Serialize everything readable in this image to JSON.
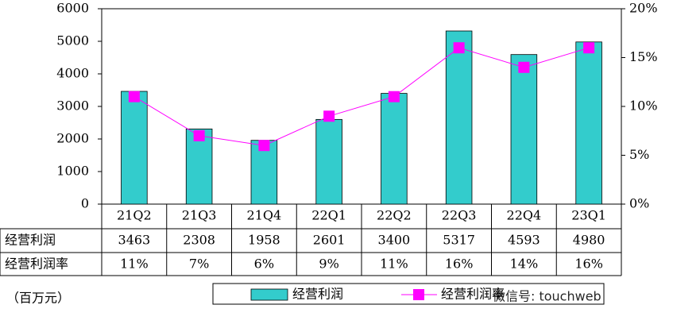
{
  "chart_data": {
    "type": "bar-line",
    "categories": [
      "21Q2",
      "21Q3",
      "21Q4",
      "22Q1",
      "22Q2",
      "22Q3",
      "22Q4",
      "23Q1"
    ],
    "series": [
      {
        "name": "经营利润",
        "type": "bar",
        "color": "#33cccc",
        "values": [
          3463,
          2308,
          1958,
          2601,
          3400,
          5317,
          4593,
          4980
        ]
      },
      {
        "name": "经营利润率",
        "type": "line",
        "axis": "y2",
        "color": "#ff00ff",
        "values": [
          11,
          7,
          6,
          9,
          11,
          16,
          14,
          16
        ],
        "value_labels": [
          "11%",
          "7%",
          "6%",
          "9%",
          "11%",
          "16%",
          "14%",
          "16%"
        ]
      }
    ],
    "ylim": [
      0,
      6000
    ],
    "yticks": [
      0,
      1000,
      2000,
      3000,
      4000,
      5000,
      6000
    ],
    "y2lim": [
      0,
      20
    ],
    "y2ticks": [
      {
        "value": 0,
        "label": "0%"
      },
      {
        "value": 5,
        "label": "5%"
      },
      {
        "value": 10,
        "label": "10%"
      },
      {
        "value": 15,
        "label": "15%"
      },
      {
        "value": 20,
        "label": "20%"
      }
    ],
    "unit": "（百万元）",
    "watermark": "微信号: touchweb"
  }
}
